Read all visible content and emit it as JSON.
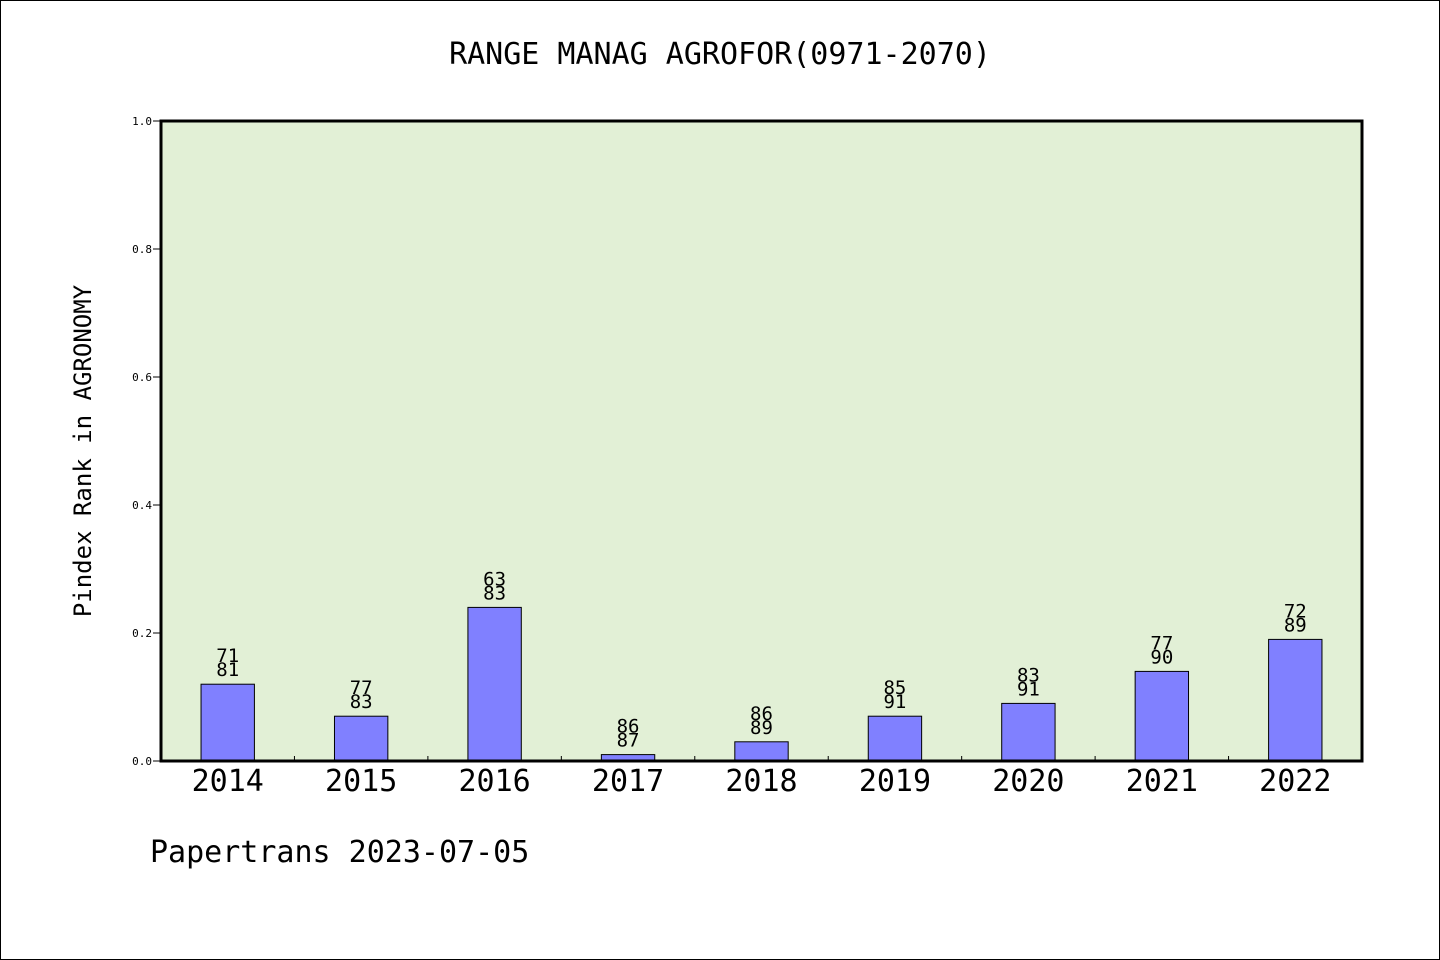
{
  "chart_data": {
    "type": "bar",
    "title": "RANGE MANAG AGROFOR(0971-2070)",
    "ylabel": "Pindex Rank in AGRONOMY",
    "xlabel": "",
    "ylim": [
      0.0,
      1.0
    ],
    "yticks": [
      "0.0",
      "0.2",
      "0.4",
      "0.6",
      "0.8",
      "1.0"
    ],
    "categories": [
      "2014",
      "2015",
      "2016",
      "2017",
      "2018",
      "2019",
      "2020",
      "2021",
      "2022"
    ],
    "values": [
      0.12,
      0.07,
      0.24,
      0.01,
      0.03,
      0.07,
      0.09,
      0.14,
      0.19
    ],
    "labels_top": [
      "71",
      "77",
      "63",
      "86",
      "86",
      "85",
      "83",
      "77",
      "72"
    ],
    "labels_bottom": [
      "81",
      "83",
      "83",
      "87",
      "89",
      "91",
      "91",
      "90",
      "89"
    ],
    "grid": false,
    "legend": "none",
    "colors": {
      "bar": "#8080ff",
      "plot_background": "#e2f0d6",
      "axis": "#000000"
    }
  },
  "footer": {
    "text": "Papertrans 2023-07-05"
  }
}
